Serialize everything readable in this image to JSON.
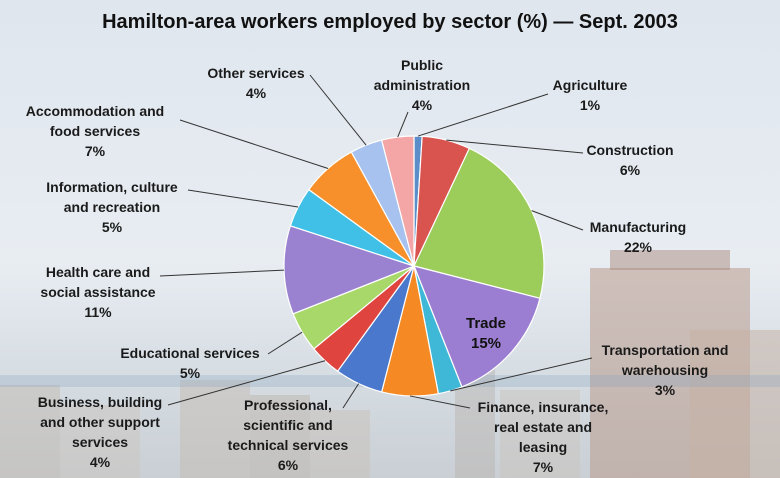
{
  "chart_data": {
    "type": "pie",
    "title": "Hamilton-area workers employed by sector (%) — Sept. 2003",
    "unit": "%",
    "slices": [
      {
        "label_lines": [
          "Agriculture"
        ],
        "value": 1,
        "value_label": "1%",
        "color": "#5b8ec9"
      },
      {
        "label_lines": [
          "Construction"
        ],
        "value": 6,
        "value_label": "6%",
        "color": "#d9534f"
      },
      {
        "label_lines": [
          "Manufacturing"
        ],
        "value": 22,
        "value_label": "22%",
        "color": "#9ccc5a"
      },
      {
        "label_lines": [
          "Trade"
        ],
        "value": 15,
        "value_label": "15%",
        "color": "#9b7ed1"
      },
      {
        "label_lines": [
          "Transportation and",
          "warehousing"
        ],
        "value": 3,
        "value_label": "3%",
        "color": "#3eb8d6"
      },
      {
        "label_lines": [
          "Finance, insurance,",
          "real estate and",
          "leasing"
        ],
        "value": 7,
        "value_label": "7%",
        "color": "#f58a25"
      },
      {
        "label_lines": [
          "Professional,",
          "scientific and",
          "technical services"
        ],
        "value": 6,
        "value_label": "6%",
        "color": "#4a78cc"
      },
      {
        "label_lines": [
          "Business, building",
          "and other support",
          "services"
        ],
        "value": 4,
        "value_label": "4%",
        "color": "#e0443f"
      },
      {
        "label_lines": [
          "Educational services"
        ],
        "value": 5,
        "value_label": "5%",
        "color": "#a8d86a"
      },
      {
        "label_lines": [
          "Health care and",
          "social assistance"
        ],
        "value": 11,
        "value_label": "11%",
        "color": "#9a82d0"
      },
      {
        "label_lines": [
          "Information, culture",
          "and recreation"
        ],
        "value": 5,
        "value_label": "5%",
        "color": "#40c0e6"
      },
      {
        "label_lines": [
          "Accommodation and",
          "food services"
        ],
        "value": 7,
        "value_label": "7%",
        "color": "#f7902a"
      },
      {
        "label_lines": [
          "Other services"
        ],
        "value": 4,
        "value_label": "4%",
        "color": "#a8c2ef"
      },
      {
        "label_lines": [
          "Public",
          "administration"
        ],
        "value": 4,
        "value_label": "4%",
        "color": "#f4a6a6"
      }
    ]
  }
}
